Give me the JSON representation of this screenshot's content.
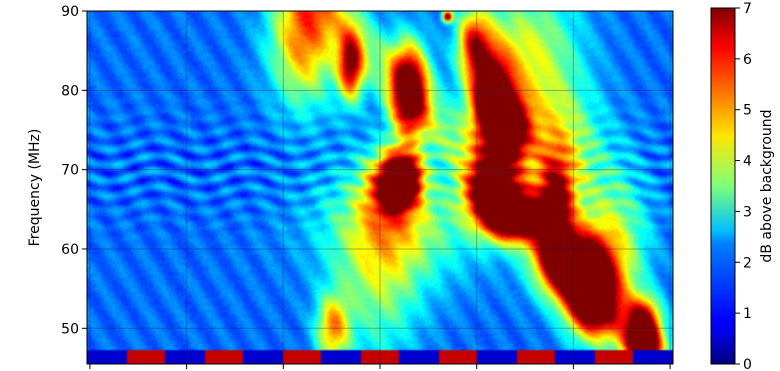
{
  "chart_data": {
    "type": "heatmap",
    "ylabel": "Frequency (MHz)",
    "ylim": [
      45.5,
      90
    ],
    "y_ticks": [
      50,
      60,
      70,
      80,
      90
    ],
    "x_ticks": [
      "",
      "",
      "",
      "",
      "",
      "",
      ""
    ],
    "grid": true,
    "colormap": "jet",
    "colorbar": {
      "label": "dB above background",
      "range": [
        0,
        7
      ],
      "ticks": [
        0,
        1,
        2,
        3,
        4,
        5,
        6,
        7
      ]
    },
    "bursts": [
      {
        "t": 0.37,
        "f": 87,
        "df": 6,
        "dt": 0.04,
        "db": 4
      },
      {
        "t": 0.45,
        "f": 83,
        "df": 3,
        "dt": 0.015,
        "db": 5
      },
      {
        "t": 0.55,
        "f": 80,
        "df": 4,
        "dt": 0.022,
        "db": 6.5
      },
      {
        "t": 0.52,
        "f": 68,
        "df": 3,
        "dt": 0.03,
        "db": 4
      },
      {
        "t": 0.54,
        "f": 69,
        "df": 2,
        "dt": 0.02,
        "db": 6.5
      },
      {
        "t": 0.5,
        "f": 57,
        "df": 8,
        "dt": 0.05,
        "db": 2
      },
      {
        "t": 0.42,
        "f": 50,
        "df": 3,
        "dt": 0.02,
        "db": 3.5
      },
      {
        "t": 0.535,
        "f": 63,
        "df": 5,
        "dt": 0.1,
        "db": 2
      },
      {
        "t": 0.66,
        "f": 86,
        "df": 3,
        "dt": 0.02,
        "db": 4
      },
      {
        "t": 0.615,
        "f": 89.3,
        "df": 0.5,
        "dt": 0.006,
        "db": 6
      },
      {
        "t": 0.69,
        "f": 79,
        "df": 4,
        "dt": 0.025,
        "db": 7
      },
      {
        "t": 0.72,
        "f": 75,
        "df": 3,
        "dt": 0.025,
        "db": 6
      },
      {
        "t": 0.69,
        "f": 67,
        "df": 3,
        "dt": 0.03,
        "db": 6.5
      },
      {
        "t": 0.73,
        "f": 64,
        "df": 2,
        "dt": 0.03,
        "db": 6
      },
      {
        "t": 0.83,
        "f": 58,
        "df": 3,
        "dt": 0.04,
        "db": 7
      },
      {
        "t": 0.8,
        "f": 65,
        "df": 4,
        "dt": 0.02,
        "db": 5
      },
      {
        "t": 0.86,
        "f": 53,
        "df": 3,
        "dt": 0.03,
        "db": 5.5
      },
      {
        "t": 0.95,
        "f": 51,
        "df": 2,
        "dt": 0.02,
        "db": 5
      },
      {
        "t": 0.95,
        "f": 48,
        "df": 1.5,
        "dt": 0.02,
        "db": 6
      },
      {
        "t": 0.8,
        "f": 72,
        "df": 6,
        "dt": 0.05,
        "db": 3
      },
      {
        "t": 0.9,
        "f": 60,
        "df": 7,
        "dt": 0.04,
        "db": 2.5
      },
      {
        "t": 0.75,
        "f": 85,
        "df": 6,
        "dt": 0.06,
        "db": 2.5
      }
    ]
  }
}
